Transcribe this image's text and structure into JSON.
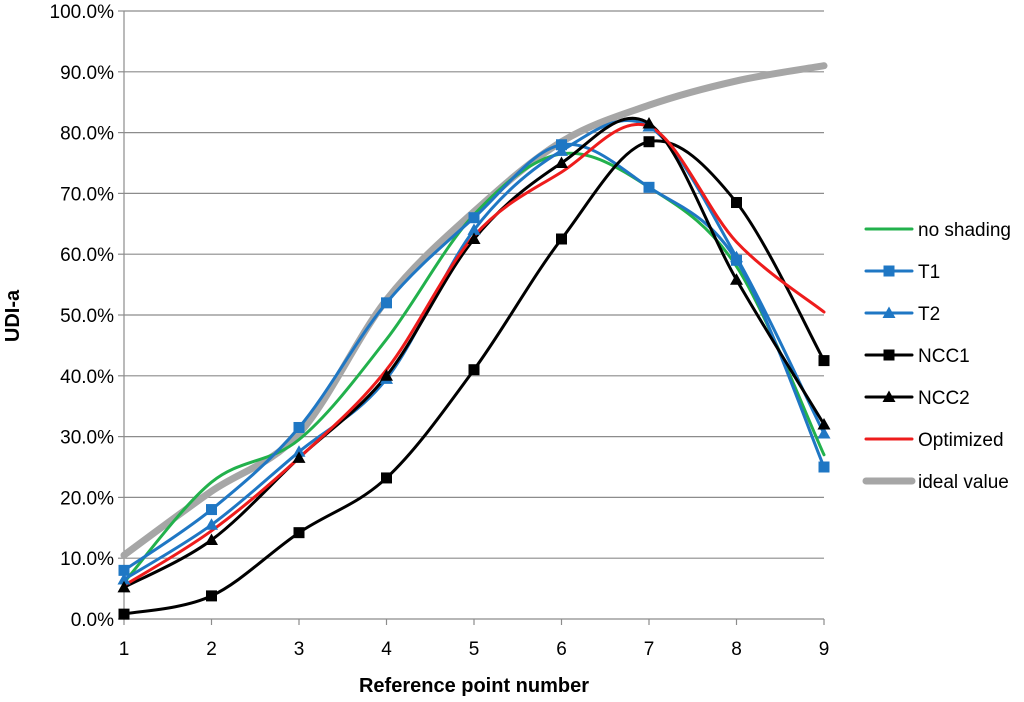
{
  "chart_data": {
    "type": "line",
    "title": "",
    "xlabel": "Reference point number",
    "ylabel": "UDI-a",
    "x": [
      1,
      2,
      3,
      4,
      5,
      6,
      7,
      8,
      9
    ],
    "xlim": [
      1,
      9
    ],
    "ylim": [
      0,
      100
    ],
    "y_ticks": [
      "0.0%",
      "10.0%",
      "20.0%",
      "30.0%",
      "40.0%",
      "50.0%",
      "60.0%",
      "70.0%",
      "80.0%",
      "90.0%",
      "100.0%"
    ],
    "x_ticks": [
      "1",
      "2",
      "3",
      "4",
      "5",
      "6",
      "7",
      "8",
      "9"
    ],
    "grid": "horizontal",
    "legend_position": "right",
    "series": [
      {
        "name": "no shading",
        "color": "#22b14c",
        "marker": "none",
        "values": [
          6.0,
          22.5,
          29.5,
          46.0,
          66.5,
          76.5,
          71.0,
          58.0,
          27.0
        ]
      },
      {
        "name": "T1",
        "color": "#1f77c4",
        "marker": "square",
        "values": [
          8.0,
          18.0,
          31.5,
          52.0,
          66.0,
          78.0,
          71.0,
          59.0,
          25.0
        ]
      },
      {
        "name": "T2",
        "color": "#1f77c4",
        "marker": "triangle",
        "values": [
          6.5,
          15.5,
          27.5,
          39.5,
          64.0,
          77.0,
          81.0,
          59.5,
          30.5
        ]
      },
      {
        "name": "NCC1",
        "color": "#000000",
        "marker": "square",
        "values": [
          0.8,
          3.8,
          14.2,
          23.2,
          41.0,
          62.5,
          78.5,
          68.5,
          42.5
        ]
      },
      {
        "name": "NCC2",
        "color": "#000000",
        "marker": "triangle",
        "values": [
          5.2,
          13.0,
          26.5,
          40.0,
          62.5,
          75.0,
          81.5,
          55.8,
          32.0
        ]
      },
      {
        "name": "Optimized",
        "color": "#ee1c1c",
        "marker": "none",
        "values": [
          5.5,
          14.5,
          26.5,
          41.0,
          63.0,
          73.5,
          81.0,
          62.0,
          50.5
        ]
      },
      {
        "name": "ideal value",
        "color": "#a6a6a6",
        "marker": "none",
        "values": [
          10.5,
          21.0,
          30.5,
          52.5,
          67.0,
          78.5,
          84.5,
          88.5,
          91.0
        ]
      }
    ]
  }
}
